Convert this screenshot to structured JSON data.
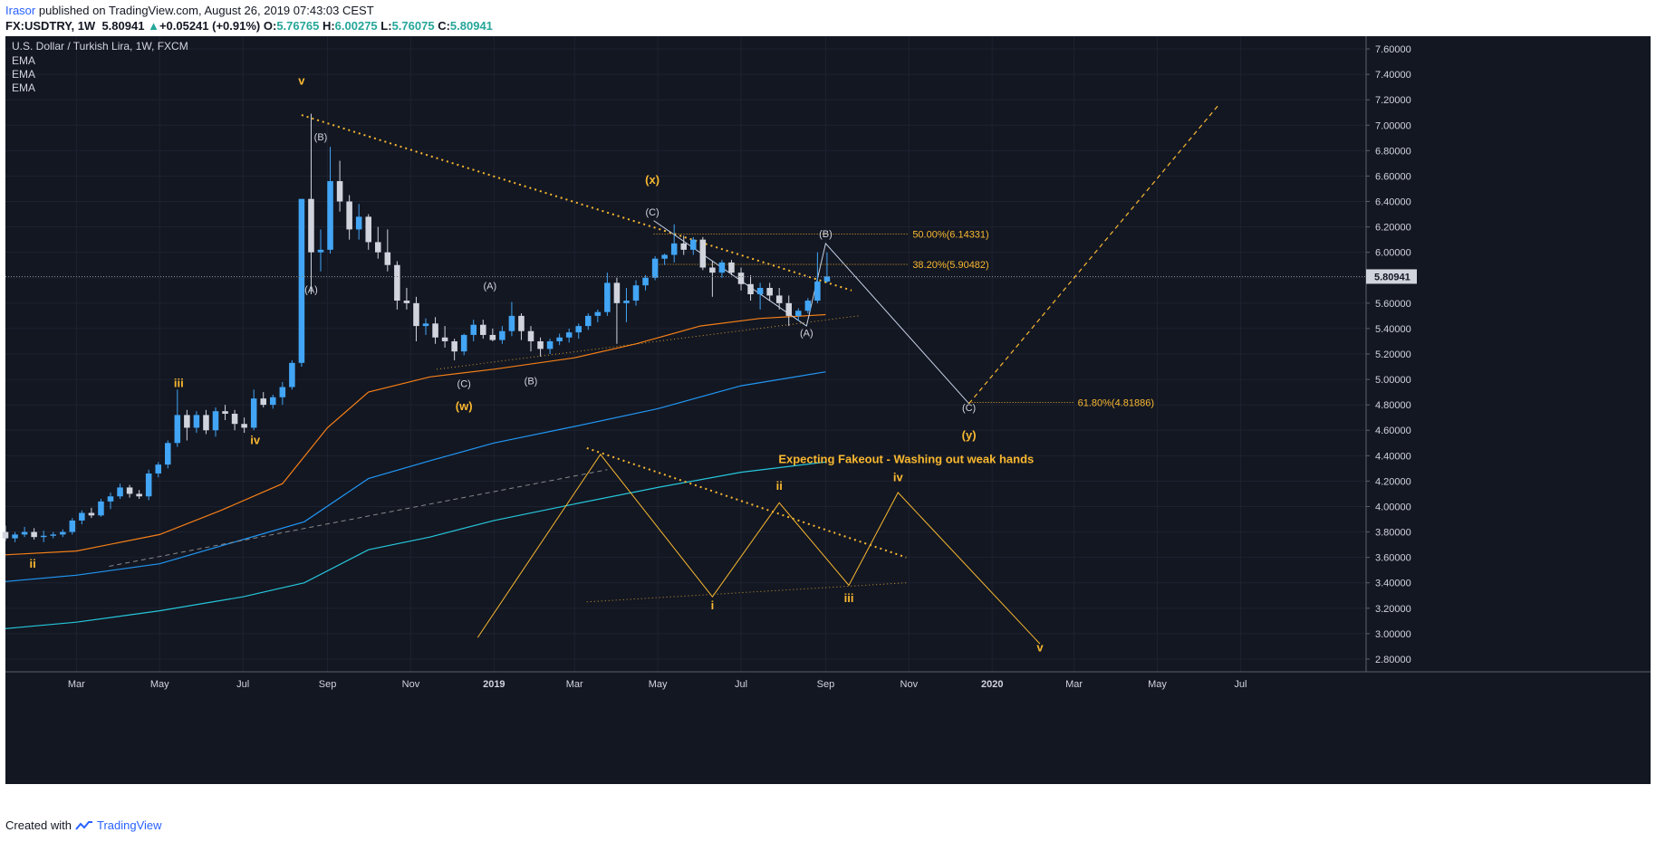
{
  "header": {
    "author": "Irasor",
    "published_text": "published on TradingView.com, August 26, 2019 07:43:03 CEST",
    "symbol": "FX:USDTRY, 1W",
    "last": "5.80941",
    "change_arrow": "▲",
    "change": "+0.05241 (+0.91%)",
    "o_label": "O:",
    "o": "5.76765",
    "h_label": "H:",
    "h": "6.00275",
    "l_label": "L:",
    "l": "5.76075",
    "c_label": "C:",
    "c": "5.80941"
  },
  "legend": {
    "title": "U.S. Dollar / Turkish Lira, 1W, FXCM",
    "indicators": [
      "EMA",
      "EMA",
      "EMA"
    ]
  },
  "footer": {
    "created_with": "Created with",
    "brand": "TradingView"
  },
  "colors": {
    "background": "#131722",
    "bull": "#42a5f5",
    "bear": "#d1d4dc",
    "ema_orange": "#f57f17",
    "ema_blue": "#2196f3",
    "ema_teal": "#26c6da",
    "wave": "#f9b830",
    "projection": "#c8d4e8",
    "price_label_bg": "#d1d4dc"
  },
  "chart_data": {
    "type": "candlestick",
    "title": "U.S. Dollar / Turkish Lira, 1W, FXCM",
    "ylim": [
      2.7,
      7.7
    ],
    "xlim": [
      "2018-01-08",
      "2020-10-01"
    ],
    "y_ticks": [
      "7.60000",
      "7.40000",
      "7.20000",
      "7.00000",
      "6.80000",
      "6.60000",
      "6.40000",
      "6.20000",
      "6.00000",
      "5.80000",
      "5.60000",
      "5.40000",
      "5.20000",
      "5.00000",
      "4.80000",
      "4.60000",
      "4.40000",
      "4.20000",
      "4.00000",
      "3.80000",
      "3.60000",
      "3.40000",
      "3.20000",
      "3.00000",
      "2.80000"
    ],
    "x_ticks": [
      {
        "label": "Mar",
        "date": "2018-03-01"
      },
      {
        "label": "May",
        "date": "2018-05-01"
      },
      {
        "label": "Jul",
        "date": "2018-07-01"
      },
      {
        "label": "Sep",
        "date": "2018-09-01"
      },
      {
        "label": "Nov",
        "date": "2018-11-01"
      },
      {
        "label": "2019",
        "date": "2019-01-01",
        "bold": true
      },
      {
        "label": "Mar",
        "date": "2019-03-01"
      },
      {
        "label": "May",
        "date": "2019-05-01"
      },
      {
        "label": "Jul",
        "date": "2019-07-01"
      },
      {
        "label": "Sep",
        "date": "2019-09-01"
      },
      {
        "label": "Nov",
        "date": "2019-11-01"
      },
      {
        "label": "2020",
        "date": "2020-01-01",
        "bold": true
      },
      {
        "label": "Mar",
        "date": "2020-03-01"
      },
      {
        "label": "May",
        "date": "2020-05-01"
      },
      {
        "label": "Jul",
        "date": "2020-07-01"
      }
    ],
    "last_price_label": "5.80941",
    "candles_start": "2018-01-08",
    "candles": [
      [
        3.8,
        3.85,
        3.73,
        3.75
      ],
      [
        3.75,
        3.8,
        3.72,
        3.78
      ],
      [
        3.78,
        3.84,
        3.76,
        3.8
      ],
      [
        3.8,
        3.83,
        3.74,
        3.76
      ],
      [
        3.76,
        3.81,
        3.72,
        3.77
      ],
      [
        3.77,
        3.8,
        3.75,
        3.78
      ],
      [
        3.78,
        3.82,
        3.76,
        3.8
      ],
      [
        3.8,
        3.91,
        3.78,
        3.89
      ],
      [
        3.89,
        3.97,
        3.86,
        3.95
      ],
      [
        3.95,
        3.99,
        3.91,
        3.93
      ],
      [
        3.93,
        4.06,
        3.92,
        4.04
      ],
      [
        4.04,
        4.11,
        3.98,
        4.08
      ],
      [
        4.08,
        4.18,
        4.06,
        4.15
      ],
      [
        4.15,
        4.17,
        4.07,
        4.1
      ],
      [
        4.1,
        4.13,
        4.06,
        4.08
      ],
      [
        4.08,
        4.29,
        4.05,
        4.26
      ],
      [
        4.26,
        4.35,
        4.23,
        4.33
      ],
      [
        4.33,
        4.52,
        4.3,
        4.5
      ],
      [
        4.5,
        4.92,
        4.47,
        4.72
      ],
      [
        4.72,
        4.76,
        4.52,
        4.62
      ],
      [
        4.62,
        4.75,
        4.58,
        4.72
      ],
      [
        4.72,
        4.76,
        4.57,
        4.6
      ],
      [
        4.6,
        4.78,
        4.55,
        4.75
      ],
      [
        4.75,
        4.8,
        4.68,
        4.73
      ],
      [
        4.73,
        4.76,
        4.6,
        4.65
      ],
      [
        4.65,
        4.7,
        4.58,
        4.62
      ],
      [
        4.62,
        4.92,
        4.6,
        4.85
      ],
      [
        4.85,
        4.9,
        4.78,
        4.8
      ],
      [
        4.8,
        4.88,
        4.77,
        4.86
      ],
      [
        4.86,
        4.98,
        4.8,
        4.94
      ],
      [
        4.94,
        5.15,
        4.92,
        5.13
      ],
      [
        5.13,
        6.42,
        5.1,
        6.42
      ],
      [
        6.42,
        7.09,
        5.67,
        6.0
      ],
      [
        6.0,
        6.18,
        5.85,
        6.02
      ],
      [
        6.02,
        6.83,
        5.99,
        6.56
      ],
      [
        6.56,
        6.72,
        6.32,
        6.4
      ],
      [
        6.4,
        6.45,
        6.1,
        6.18
      ],
      [
        6.18,
        6.38,
        6.1,
        6.28
      ],
      [
        6.28,
        6.3,
        6.02,
        6.08
      ],
      [
        6.08,
        6.2,
        5.95,
        6.0
      ],
      [
        6.0,
        6.18,
        5.85,
        5.9
      ],
      [
        5.9,
        5.93,
        5.55,
        5.62
      ],
      [
        5.62,
        5.72,
        5.55,
        5.6
      ],
      [
        5.6,
        5.65,
        5.3,
        5.42
      ],
      [
        5.42,
        5.48,
        5.35,
        5.44
      ],
      [
        5.44,
        5.49,
        5.28,
        5.33
      ],
      [
        5.33,
        5.42,
        5.25,
        5.3
      ],
      [
        5.3,
        5.32,
        5.15,
        5.22
      ],
      [
        5.22,
        5.36,
        5.19,
        5.35
      ],
      [
        5.35,
        5.47,
        5.3,
        5.43
      ],
      [
        5.43,
        5.47,
        5.32,
        5.35
      ],
      [
        5.35,
        5.4,
        5.3,
        5.31
      ],
      [
        5.31,
        5.42,
        5.28,
        5.38
      ],
      [
        5.38,
        5.61,
        5.34,
        5.5
      ],
      [
        5.5,
        5.52,
        5.31,
        5.38
      ],
      [
        5.38,
        5.42,
        5.22,
        5.3
      ],
      [
        5.3,
        5.33,
        5.18,
        5.24
      ],
      [
        5.24,
        5.32,
        5.2,
        5.3
      ],
      [
        5.3,
        5.36,
        5.27,
        5.33
      ],
      [
        5.33,
        5.4,
        5.29,
        5.37
      ],
      [
        5.37,
        5.44,
        5.32,
        5.42
      ],
      [
        5.42,
        5.52,
        5.39,
        5.5
      ],
      [
        5.5,
        5.55,
        5.45,
        5.53
      ],
      [
        5.53,
        5.84,
        5.5,
        5.76
      ],
      [
        5.76,
        5.8,
        5.28,
        5.6
      ],
      [
        5.6,
        5.72,
        5.45,
        5.62
      ],
      [
        5.62,
        5.78,
        5.58,
        5.74
      ],
      [
        5.74,
        5.82,
        5.7,
        5.8
      ],
      [
        5.8,
        5.97,
        5.78,
        5.95
      ],
      [
        5.95,
        5.99,
        5.9,
        5.98
      ],
      [
        5.98,
        6.22,
        5.92,
        6.07
      ],
      [
        6.07,
        6.13,
        5.98,
        6.02
      ],
      [
        6.02,
        6.12,
        5.98,
        6.1
      ],
      [
        6.1,
        6.12,
        5.86,
        5.88
      ],
      [
        5.88,
        5.93,
        5.65,
        5.84
      ],
      [
        5.84,
        5.94,
        5.8,
        5.92
      ],
      [
        5.92,
        5.94,
        5.82,
        5.84
      ],
      [
        5.84,
        5.88,
        5.7,
        5.75
      ],
      [
        5.75,
        5.82,
        5.62,
        5.67
      ],
      [
        5.67,
        5.76,
        5.55,
        5.72
      ],
      [
        5.72,
        5.76,
        5.62,
        5.66
      ],
      [
        5.66,
        5.72,
        5.55,
        5.6
      ],
      [
        5.6,
        5.66,
        5.42,
        5.5
      ],
      [
        5.5,
        5.56,
        5.46,
        5.54
      ],
      [
        5.54,
        5.64,
        5.52,
        5.62
      ],
      [
        5.62,
        6.0,
        5.6,
        5.77
      ],
      [
        5.77,
        6.0,
        5.76,
        5.81
      ]
    ],
    "ema_series": [
      {
        "color": "#f57f17",
        "points": [
          [
            "2018-01-08",
            3.62
          ],
          [
            "2018-03-01",
            3.65
          ],
          [
            "2018-05-01",
            3.78
          ],
          [
            "2018-06-15",
            3.97
          ],
          [
            "2018-07-30",
            4.18
          ],
          [
            "2018-09-01",
            4.62
          ],
          [
            "2018-10-01",
            4.9
          ],
          [
            "2018-11-15",
            5.02
          ],
          [
            "2019-01-01",
            5.08
          ],
          [
            "2019-03-01",
            5.17
          ],
          [
            "2019-04-15",
            5.28
          ],
          [
            "2019-06-01",
            5.42
          ],
          [
            "2019-07-15",
            5.48
          ],
          [
            "2019-09-01",
            5.51
          ]
        ]
      },
      {
        "color": "#2196f3",
        "points": [
          [
            "2018-01-08",
            3.41
          ],
          [
            "2018-03-01",
            3.46
          ],
          [
            "2018-05-01",
            3.55
          ],
          [
            "2018-07-01",
            3.74
          ],
          [
            "2018-08-15",
            3.88
          ],
          [
            "2018-10-01",
            4.22
          ],
          [
            "2018-11-15",
            4.36
          ],
          [
            "2019-01-01",
            4.5
          ],
          [
            "2019-03-01",
            4.63
          ],
          [
            "2019-05-01",
            4.77
          ],
          [
            "2019-07-01",
            4.95
          ],
          [
            "2019-09-01",
            5.06
          ]
        ]
      },
      {
        "color": "#26c6da",
        "points": [
          [
            "2018-01-08",
            3.04
          ],
          [
            "2018-03-01",
            3.09
          ],
          [
            "2018-05-01",
            3.18
          ],
          [
            "2018-07-01",
            3.29
          ],
          [
            "2018-08-15",
            3.4
          ],
          [
            "2018-10-01",
            3.66
          ],
          [
            "2018-11-15",
            3.76
          ],
          [
            "2019-01-01",
            3.89
          ],
          [
            "2019-03-01",
            4.02
          ],
          [
            "2019-05-01",
            4.15
          ],
          [
            "2019-07-01",
            4.27
          ],
          [
            "2019-09-01",
            4.35
          ]
        ]
      }
    ],
    "annotations": [
      {
        "text": "v",
        "date": "2018-08-13",
        "price": 7.32,
        "color": "#f9b830",
        "bold": true
      },
      {
        "text": "(B)",
        "date": "2018-08-27",
        "price": 6.88,
        "color": "#d1d4dc"
      },
      {
        "text": "(A)",
        "date": "2018-08-20",
        "price": 5.68,
        "color": "#d1d4dc"
      },
      {
        "text": "iii",
        "date": "2018-05-15",
        "price": 4.94,
        "color": "#f9b830",
        "bold": true
      },
      {
        "text": "iv",
        "date": "2018-07-10",
        "price": 4.49,
        "color": "#f9b830",
        "bold": true
      },
      {
        "text": "ii",
        "date": "2018-01-28",
        "price": 3.52,
        "color": "#f9b830",
        "bold": true
      },
      {
        "text": "(A)",
        "date": "2018-12-29",
        "price": 5.71,
        "color": "#d1d4dc"
      },
      {
        "text": "(C)",
        "date": "2018-12-10",
        "price": 4.94,
        "color": "#d1d4dc"
      },
      {
        "text": "(B)",
        "date": "2019-01-28",
        "price": 4.96,
        "color": "#d1d4dc"
      },
      {
        "text": "(w)",
        "date": "2018-12-10",
        "price": 4.76,
        "color": "#f9b830",
        "bold": true
      },
      {
        "text": "(x)",
        "date": "2019-04-27",
        "price": 6.54,
        "color": "#f9b830",
        "bold": true
      },
      {
        "text": "(C)",
        "date": "2019-04-27",
        "price": 6.29,
        "color": "#d1d4dc"
      },
      {
        "text": "(B)",
        "date": "2019-09-01",
        "price": 6.12,
        "color": "#d1d4dc"
      },
      {
        "text": "(A)",
        "date": "2019-08-18",
        "price": 5.34,
        "color": "#d1d4dc"
      },
      {
        "text": "(C)",
        "date": "2019-12-15",
        "price": 4.75,
        "color": "#d1d4dc"
      },
      {
        "text": "(y)",
        "date": "2019-12-15",
        "price": 4.53,
        "color": "#f9b830",
        "bold": true
      },
      {
        "text": "ii",
        "date": "2019-07-29",
        "price": 4.13,
        "color": "#f9b830",
        "bold": true
      },
      {
        "text": "iv",
        "date": "2019-10-24",
        "price": 4.2,
        "color": "#f9b830",
        "bold": true
      },
      {
        "text": "i",
        "date": "2019-06-10",
        "price": 3.19,
        "color": "#f9b830",
        "bold": true
      },
      {
        "text": "iii",
        "date": "2019-09-18",
        "price": 3.25,
        "color": "#f9b830",
        "bold": true
      },
      {
        "text": "v",
        "date": "2020-02-05",
        "price": 2.86,
        "color": "#f9b830",
        "bold": true
      },
      {
        "text": "Expecting Fakeout - Washing out weak hands",
        "date": "2019-10-30",
        "price": 4.34,
        "color": "#f9b830",
        "bold": true
      }
    ],
    "fib_levels": [
      {
        "label": "50.00%(6.14331)",
        "price": 6.14331,
        "from": "2019-04-28",
        "to": "2019-11-01"
      },
      {
        "label": "38.20%(5.90482)",
        "price": 5.90482,
        "from": "2019-04-28",
        "to": "2019-11-01"
      },
      {
        "label": "61.80%(4.81886)",
        "price": 4.81886,
        "from": "2019-12-15",
        "to": "2020-03-01"
      }
    ]
  }
}
